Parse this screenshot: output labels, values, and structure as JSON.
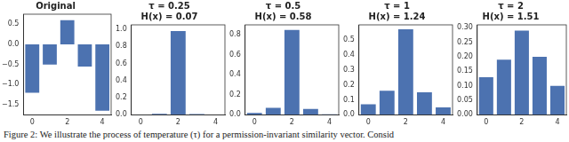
{
  "chart_data": [
    {
      "type": "bar",
      "title": [
        "Original"
      ],
      "categories": [
        "0",
        null,
        "2",
        null,
        "4"
      ],
      "values": [
        -1.2,
        -0.5,
        0.6,
        -0.55,
        -1.65
      ],
      "color": "#4c72b0",
      "ylim": [
        -1.75,
        0.75
      ],
      "yticks": [
        {
          "value": -1.5,
          "label": "−1.5"
        },
        {
          "value": -1,
          "label": "−1.0"
        },
        {
          "value": -0.5,
          "label": "−0.5"
        },
        {
          "value": 0,
          "label": "0.0"
        },
        0.5
      ],
      "grid": false
    },
    {
      "type": "bar",
      "title": [
        "τ = 0.25",
        "H(x) = 0.07"
      ],
      "categories": [
        "0",
        null,
        "2",
        null,
        "4"
      ],
      "values": [
        0.001,
        0.012,
        0.977,
        0.01,
        0.0001
      ],
      "color": "#4c72b0",
      "ylim": [
        0,
        1.05
      ],
      "yticks": [
        {
          "value": 0,
          "label": "0.0"
        },
        0.2,
        0.4,
        0.6,
        0.8,
        {
          "value": 1,
          "label": "1.0"
        }
      ],
      "grid": false
    },
    {
      "type": "bar",
      "title": [
        "τ = 0.5",
        "H(x) = 0.58"
      ],
      "categories": [
        "0",
        null,
        "2",
        null,
        "4"
      ],
      "values": [
        0.02,
        0.07,
        0.85,
        0.06,
        0.005
      ],
      "color": "#4c72b0",
      "ylim": [
        0,
        0.9
      ],
      "yticks": [
        {
          "value": 0,
          "label": "0.0"
        },
        0.2,
        0.4,
        0.6,
        0.8
      ],
      "grid": false
    },
    {
      "type": "bar",
      "title": [
        "τ = 1",
        "H(x) = 1.24"
      ],
      "categories": [
        "0",
        null,
        "2",
        null,
        "4"
      ],
      "values": [
        0.07,
        0.16,
        0.57,
        0.15,
        0.05
      ],
      "color": "#4c72b0",
      "ylim": [
        0,
        0.6
      ],
      "yticks": [
        {
          "value": 0,
          "label": "0.0"
        },
        0.1,
        0.2,
        0.3,
        0.4,
        0.5
      ],
      "grid": false
    },
    {
      "type": "bar",
      "title": [
        "τ = 2",
        "H(x) = 1.51"
      ],
      "categories": [
        "0",
        null,
        "2",
        null,
        "4"
      ],
      "values": [
        0.13,
        0.19,
        0.29,
        0.2,
        0.1
      ],
      "color": "#4c72b0",
      "ylim": [
        0,
        0.31
      ],
      "yticks": [
        {
          "value": 0,
          "label": "0.00"
        },
        0.05,
        {
          "value": 0.1,
          "label": "0.10"
        },
        0.15,
        {
          "value": 0.2,
          "label": "0.20"
        },
        0.25,
        {
          "value": 0.3,
          "label": "0.30"
        }
      ],
      "grid": false
    }
  ],
  "caption": "Figure 2: We illustrate the process of temperature (τ) for a permission-invariant similarity vector. Consid"
}
